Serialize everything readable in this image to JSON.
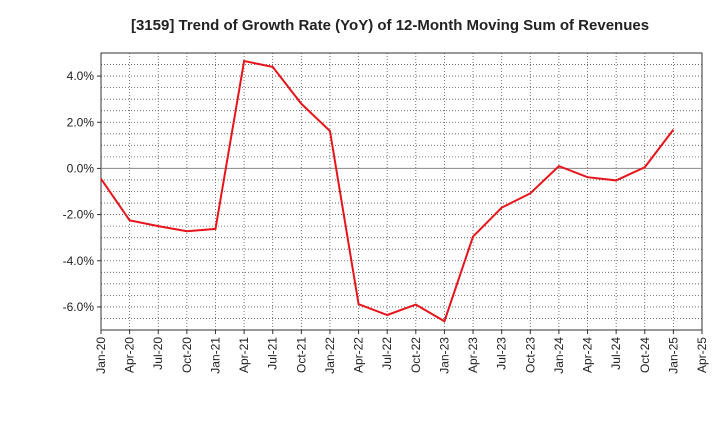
{
  "chart_data": {
    "type": "line",
    "title": "[3159]  Trend of Growth Rate (YoY) of 12-Month Moving Sum of Revenues",
    "xlabel": "",
    "ylabel": "",
    "x_tick_labels": [
      "Jan-20",
      "Apr-20",
      "Jul-20",
      "Oct-20",
      "Jan-21",
      "Apr-21",
      "Jul-21",
      "Oct-21",
      "Jan-22",
      "Apr-22",
      "Jul-22",
      "Oct-22",
      "Jan-23",
      "Apr-23",
      "Jul-23",
      "Oct-23",
      "Jan-24",
      "Apr-24",
      "Jul-24",
      "Oct-24",
      "Jan-25",
      "Apr-25"
    ],
    "y_tick_labels": [
      "4.0%",
      "2.0%",
      "0.0%",
      "-2.0%",
      "-4.0%",
      "-6.0%"
    ],
    "y_ticks": [
      4,
      2,
      0,
      -2,
      -4,
      -6
    ],
    "ylim": [
      -7.0,
      5.0
    ],
    "grid": true,
    "line_color": "#e8141b",
    "series": [
      {
        "x": [
          "Jan-20",
          "Apr-20",
          "Jul-20",
          "Oct-20",
          "Jan-21",
          "Apr-21",
          "Jul-21",
          "Oct-21",
          "Jan-22",
          "Apr-22",
          "Jul-22",
          "Oct-22",
          "Jan-23",
          "Apr-23",
          "Jul-23",
          "Oct-23",
          "Jan-24",
          "Apr-24",
          "Jul-24",
          "Oct-24",
          "Jan-25"
        ],
        "values": [
          -0.45,
          -2.25,
          -2.5,
          -2.72,
          -2.62,
          4.65,
          4.4,
          2.8,
          1.62,
          -5.88,
          -6.35,
          -5.9,
          -6.62,
          -2.95,
          -1.7,
          -1.08,
          0.1,
          -0.38,
          -0.52,
          0.05,
          1.68
        ]
      }
    ]
  }
}
